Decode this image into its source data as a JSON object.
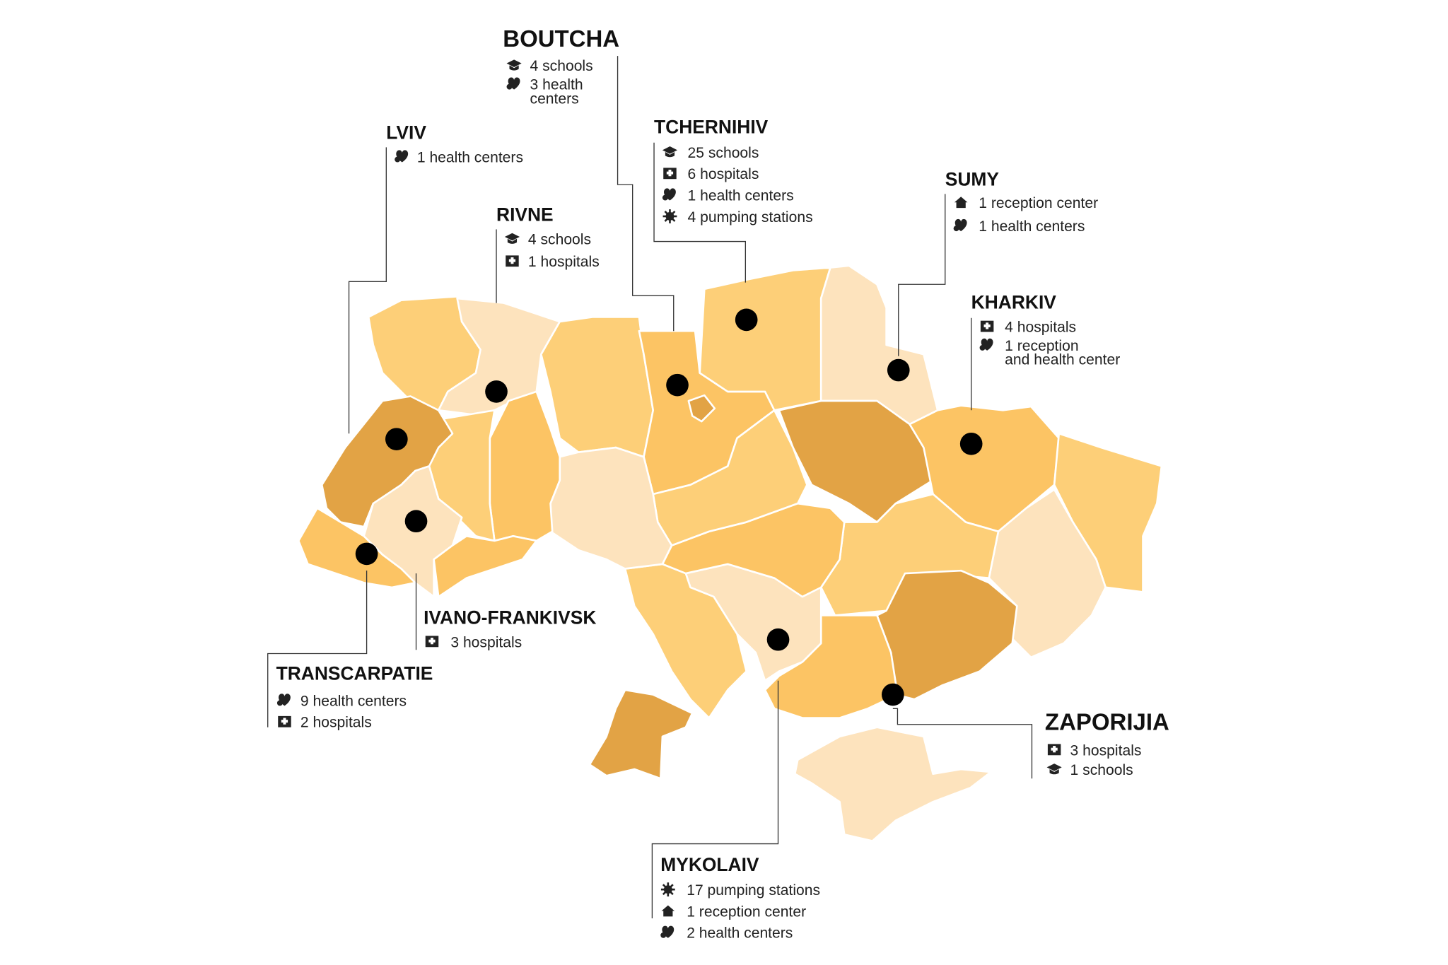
{
  "colors": {
    "light": "#FDE3BD",
    "medium": "#FDCF78",
    "strong": "#FCC464",
    "dark": "#E2A345",
    "marker": "#000000",
    "leader": "#333333"
  },
  "map_regions": [
    {
      "id": "volyn",
      "shade": "medium"
    },
    {
      "id": "rivne",
      "shade": "light"
    },
    {
      "id": "zhytomyr",
      "shade": "medium"
    },
    {
      "id": "kyiv-oblast",
      "shade": "strong"
    },
    {
      "id": "kyiv-city",
      "shade": "dark"
    },
    {
      "id": "chernihiv",
      "shade": "medium"
    },
    {
      "id": "sumy",
      "shade": "light"
    },
    {
      "id": "poltava",
      "shade": "dark"
    },
    {
      "id": "kharkiv",
      "shade": "strong"
    },
    {
      "id": "luhansk",
      "shade": "medium"
    },
    {
      "id": "donetsk",
      "shade": "light"
    },
    {
      "id": "dnipro",
      "shade": "medium"
    },
    {
      "id": "zaporizhzhia",
      "shade": "dark"
    },
    {
      "id": "kherson",
      "shade": "strong"
    },
    {
      "id": "crimea",
      "shade": "light"
    },
    {
      "id": "mykolaiv",
      "shade": "light"
    },
    {
      "id": "odesa",
      "shade": "medium"
    },
    {
      "id": "odesa-south",
      "shade": "dark"
    },
    {
      "id": "kirovohrad",
      "shade": "strong"
    },
    {
      "id": "cherkasy",
      "shade": "medium"
    },
    {
      "id": "vinnytsia",
      "shade": "light"
    },
    {
      "id": "khmelnytskyi",
      "shade": "strong"
    },
    {
      "id": "ternopil",
      "shade": "medium"
    },
    {
      "id": "lviv",
      "shade": "dark"
    },
    {
      "id": "ivano-frankivsk",
      "shade": "light"
    },
    {
      "id": "chernivtsi",
      "shade": "strong"
    },
    {
      "id": "zakarpattia",
      "shade": "strong"
    }
  ],
  "callouts": [
    {
      "id": "boutcha",
      "title": "BOUTCHA",
      "items": [
        {
          "icon": "graduation-cap",
          "lines": [
            "4 schools"
          ]
        },
        {
          "icon": "heart",
          "lines": [
            "3 health",
            "centers"
          ]
        }
      ]
    },
    {
      "id": "lviv",
      "title": "LVIV",
      "items": [
        {
          "icon": "heart",
          "lines": [
            "1 health centers"
          ]
        }
      ]
    },
    {
      "id": "rivne",
      "title": "RIVNE",
      "items": [
        {
          "icon": "graduation-cap",
          "lines": [
            "4 schools"
          ]
        },
        {
          "icon": "hospital",
          "lines": [
            "1 hospitals"
          ]
        }
      ]
    },
    {
      "id": "tchernihiv",
      "title": "TCHERNIHIV",
      "items": [
        {
          "icon": "graduation-cap",
          "lines": [
            "25 schools"
          ]
        },
        {
          "icon": "hospital",
          "lines": [
            "6 hospitals"
          ]
        },
        {
          "icon": "heart",
          "lines": [
            "1 health centers"
          ]
        },
        {
          "icon": "pump",
          "lines": [
            "4 pumping stations"
          ]
        }
      ]
    },
    {
      "id": "sumy",
      "title": "SUMY",
      "items": [
        {
          "icon": "house",
          "lines": [
            "1 reception center"
          ]
        },
        {
          "icon": "heart",
          "lines": [
            "1 health centers"
          ]
        }
      ]
    },
    {
      "id": "kharkiv",
      "title": "KHARKIV",
      "items": [
        {
          "icon": "hospital",
          "lines": [
            "4 hospitals"
          ]
        },
        {
          "icon": "heart",
          "lines": [
            "1 reception",
            "and health center"
          ]
        }
      ]
    },
    {
      "id": "ivano-frankivsk",
      "title": "IVANO-FRANKIVSK",
      "items": [
        {
          "icon": "hospital",
          "lines": [
            "3 hospitals"
          ]
        }
      ]
    },
    {
      "id": "transcarpatie",
      "title": "TRANSCARPATIE",
      "items": [
        {
          "icon": "heart",
          "lines": [
            "9 health centers"
          ]
        },
        {
          "icon": "hospital",
          "lines": [
            "2 hospitals"
          ]
        }
      ]
    },
    {
      "id": "zaporijia",
      "title": "ZAPORIJIA",
      "items": [
        {
          "icon": "hospital",
          "lines": [
            "3 hospitals"
          ]
        },
        {
          "icon": "graduation-cap",
          "lines": [
            "1 schools"
          ]
        }
      ]
    },
    {
      "id": "mykolaiv",
      "title": "MYKOLAIV",
      "items": [
        {
          "icon": "pump",
          "lines": [
            "17 pumping stations"
          ]
        },
        {
          "icon": "house",
          "lines": [
            "1 reception center"
          ]
        },
        {
          "icon": "heart",
          "lines": [
            "2 health centers"
          ]
        }
      ]
    }
  ]
}
